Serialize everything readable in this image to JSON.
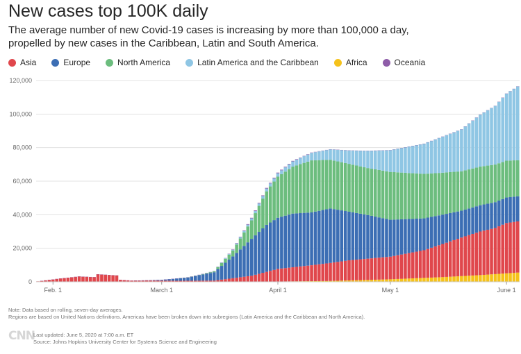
{
  "title": "New cases top 100K daily",
  "subtitle": "The average number of new Covid-19 cases is increasing by more than 100,000 a day, propelled by new cases in the Caribbean, Latin and South America.",
  "note_lines": [
    "Note: Data based on rolling, seven-day averages.",
    "Regions are based on United Nations definitions. Americas have been broken down into subregions (Latin America and the Caribbean and North America)."
  ],
  "logo": "CNN",
  "footer_lines": [
    "Last updated: June 5, 2020 at 7:00 a.m. ET",
    "Source: Johns Hopkins University Center for Systems Science and Engineering"
  ],
  "colors": {
    "Asia": "#e0474c",
    "Europe": "#3c6eb4",
    "North America": "#6cbd7e",
    "Latin America and the Caribbean": "#8fc6e4",
    "Africa": "#f5c21b",
    "Oceania": "#8e5ca8"
  },
  "chart_data": {
    "type": "bar",
    "stacked": true,
    "x_start": "2020-01-28",
    "x_end": "2020-06-04",
    "x_ticks": [
      {
        "date": "2020-02-01",
        "label": "Feb. 1"
      },
      {
        "date": "2020-03-01",
        "label": "March 1"
      },
      {
        "date": "2020-04-01",
        "label": "April 1"
      },
      {
        "date": "2020-05-01",
        "label": "May 1"
      },
      {
        "date": "2020-06-01",
        "label": "June 1"
      }
    ],
    "ylim": [
      0,
      120000
    ],
    "y_ticks": [
      0,
      20000,
      40000,
      60000,
      80000,
      100000,
      120000
    ],
    "y_tick_labels": [
      "0",
      "20,000",
      "40,000",
      "60,000",
      "80,000",
      "100,000",
      "120,000"
    ],
    "grid": true,
    "legend_position": "top-left",
    "series_order": [
      "Africa",
      "Asia",
      "Europe",
      "North America",
      "Latin America and the Caribbean",
      "Oceania"
    ],
    "series": [
      {
        "name": "Asia",
        "keyframes": [
          [
            "2020-01-28",
            300
          ],
          [
            "2020-02-03",
            2000
          ],
          [
            "2020-02-08",
            3200
          ],
          [
            "2020-02-12",
            2800
          ],
          [
            "2020-02-13",
            4500
          ],
          [
            "2020-02-18",
            3800
          ],
          [
            "2020-02-19",
            1200
          ],
          [
            "2020-02-22",
            700
          ],
          [
            "2020-02-26",
            800
          ],
          [
            "2020-03-05",
            600
          ],
          [
            "2020-03-15",
            700
          ],
          [
            "2020-03-25",
            3500
          ],
          [
            "2020-04-01",
            7500
          ],
          [
            "2020-04-10",
            9500
          ],
          [
            "2020-04-20",
            12000
          ],
          [
            "2020-05-01",
            13500
          ],
          [
            "2020-05-10",
            16500
          ],
          [
            "2020-05-20",
            23000
          ],
          [
            "2020-05-25",
            26000
          ],
          [
            "2020-05-29",
            27500
          ],
          [
            "2020-06-01",
            30000
          ],
          [
            "2020-06-04",
            30500
          ]
        ]
      },
      {
        "name": "Europe",
        "keyframes": [
          [
            "2020-01-28",
            0
          ],
          [
            "2020-02-22",
            0
          ],
          [
            "2020-02-26",
            100
          ],
          [
            "2020-03-01",
            500
          ],
          [
            "2020-03-08",
            2000
          ],
          [
            "2020-03-15",
            5000
          ],
          [
            "2020-03-20",
            13000
          ],
          [
            "2020-03-25",
            22000
          ],
          [
            "2020-03-29",
            28000
          ],
          [
            "2020-04-01",
            30500
          ],
          [
            "2020-04-05",
            32000
          ],
          [
            "2020-04-10",
            31500
          ],
          [
            "2020-04-15",
            32500
          ],
          [
            "2020-04-20",
            29000
          ],
          [
            "2020-04-25",
            26000
          ],
          [
            "2020-05-01",
            22000
          ],
          [
            "2020-05-10",
            19000
          ],
          [
            "2020-05-20",
            16000
          ],
          [
            "2020-06-04",
            15000
          ]
        ]
      },
      {
        "name": "North America",
        "keyframes": [
          [
            "2020-01-28",
            0
          ],
          [
            "2020-03-05",
            0
          ],
          [
            "2020-03-10",
            100
          ],
          [
            "2020-03-15",
            600
          ],
          [
            "2020-03-20",
            3500
          ],
          [
            "2020-03-25",
            11000
          ],
          [
            "2020-03-29",
            20000
          ],
          [
            "2020-04-01",
            24500
          ],
          [
            "2020-04-05",
            28000
          ],
          [
            "2020-04-10",
            31000
          ],
          [
            "2020-04-15",
            29000
          ],
          [
            "2020-04-20",
            28500
          ],
          [
            "2020-04-25",
            28000
          ],
          [
            "2020-05-01",
            28500
          ],
          [
            "2020-05-10",
            26500
          ],
          [
            "2020-05-20",
            23500
          ],
          [
            "2020-05-25",
            23000
          ],
          [
            "2020-06-04",
            21500
          ]
        ]
      },
      {
        "name": "Latin America and the Caribbean",
        "keyframes": [
          [
            "2020-01-28",
            0
          ],
          [
            "2020-03-10",
            0
          ],
          [
            "2020-03-15",
            50
          ],
          [
            "2020-03-20",
            500
          ],
          [
            "2020-03-25",
            1200
          ],
          [
            "2020-04-01",
            2000
          ],
          [
            "2020-04-10",
            4500
          ],
          [
            "2020-04-20",
            8000
          ],
          [
            "2020-05-01",
            13000
          ],
          [
            "2020-05-10",
            18000
          ],
          [
            "2020-05-20",
            25000
          ],
          [
            "2020-05-25",
            31000
          ],
          [
            "2020-05-29",
            35000
          ],
          [
            "2020-06-01",
            40000
          ],
          [
            "2020-06-04",
            44000
          ]
        ]
      },
      {
        "name": "Africa",
        "keyframes": [
          [
            "2020-01-28",
            0
          ],
          [
            "2020-03-10",
            0
          ],
          [
            "2020-03-20",
            50
          ],
          [
            "2020-04-01",
            200
          ],
          [
            "2020-04-15",
            500
          ],
          [
            "2020-05-01",
            1500
          ],
          [
            "2020-05-15",
            2800
          ],
          [
            "2020-05-25",
            4000
          ],
          [
            "2020-06-04",
            5500
          ]
        ]
      },
      {
        "name": "Oceania",
        "keyframes": [
          [
            "2020-01-28",
            0
          ],
          [
            "2020-03-15",
            50
          ],
          [
            "2020-03-25",
            350
          ],
          [
            "2020-04-01",
            400
          ],
          [
            "2020-04-15",
            50
          ],
          [
            "2020-06-04",
            20
          ]
        ]
      }
    ]
  }
}
